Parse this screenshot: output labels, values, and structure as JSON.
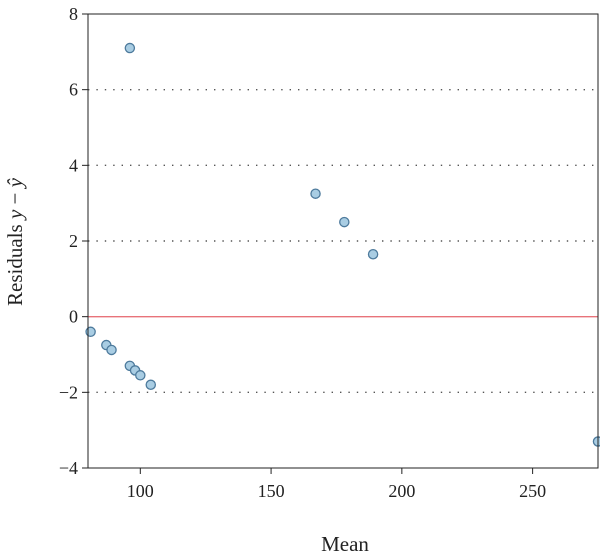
{
  "chart_data": {
    "type": "scatter",
    "xlabel": "Mean",
    "ylabel": {
      "prefix": "Residuals ",
      "var_y": "y",
      "dash": " − ",
      "var_yhat": "ŷ"
    },
    "xlim": [
      80,
      275
    ],
    "ylim": [
      -4,
      8
    ],
    "xticks": [
      100,
      150,
      200,
      250
    ],
    "xtick_labels": [
      "100",
      "150",
      "200",
      "250"
    ],
    "yticks": [
      -4,
      -2,
      0,
      2,
      4,
      6,
      8
    ],
    "ytick_labels": [
      "−4",
      "−2",
      "0",
      "2",
      "4",
      "6",
      "8"
    ],
    "grid": "horizontal dotted",
    "reference_line": {
      "y": 0,
      "color": "#e8737a"
    },
    "marker": {
      "fill": "#a9cde3",
      "stroke": "#4d7a9c"
    },
    "points": [
      {
        "x": 81,
        "y": -0.4
      },
      {
        "x": 87,
        "y": -0.75
      },
      {
        "x": 89,
        "y": -0.88
      },
      {
        "x": 96,
        "y": 7.1
      },
      {
        "x": 96,
        "y": -1.3
      },
      {
        "x": 98,
        "y": -1.42
      },
      {
        "x": 100,
        "y": -1.55
      },
      {
        "x": 104,
        "y": -1.8
      },
      {
        "x": 167,
        "y": 3.25
      },
      {
        "x": 178,
        "y": 2.5
      },
      {
        "x": 189,
        "y": 1.65
      },
      {
        "x": 275,
        "y": -3.3
      }
    ]
  }
}
